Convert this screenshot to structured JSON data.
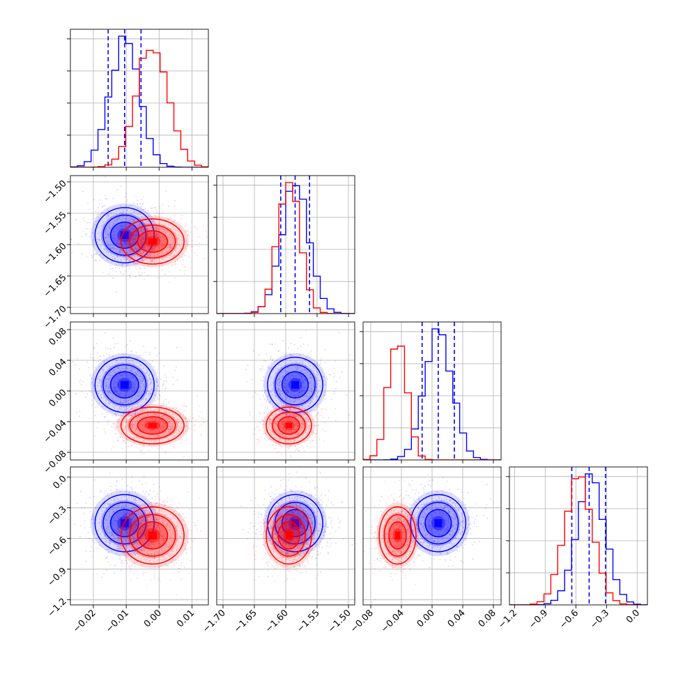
{
  "chart_data": {
    "type": "corner",
    "grid": true,
    "parameters": [
      {
        "range": [
          -0.027,
          0.015
        ],
        "ticks": [
          -0.02,
          -0.01,
          0.0,
          0.01
        ],
        "tick_labels": [
          "−0.02",
          "−0.01",
          "0.00",
          "0.01"
        ]
      },
      {
        "range": [
          -1.71,
          -1.49
        ],
        "ticks": [
          -1.7,
          -1.65,
          -1.6,
          -1.55,
          -1.5
        ],
        "tick_labels": [
          "−1.70",
          "−1.65",
          "−1.60",
          "−1.55",
          "−1.50"
        ]
      },
      {
        "range": [
          -0.09,
          0.09
        ],
        "ticks": [
          -0.08,
          -0.04,
          0.0,
          0.04,
          0.08
        ],
        "tick_labels": [
          "−0.08",
          "−0.04",
          "0.00",
          "0.04",
          "0.08"
        ]
      },
      {
        "range": [
          -1.25,
          0.1
        ],
        "ticks": [
          -1.2,
          -0.9,
          -0.6,
          -0.3,
          0.0
        ],
        "tick_labels": [
          "−1.2",
          "−0.9",
          "−0.6",
          "−0.3",
          "0.0"
        ]
      }
    ],
    "series": [
      {
        "color": "#0000ff",
        "mean": [
          -0.0105,
          -1.585,
          0.008,
          -0.45
        ],
        "std": [
          0.0045,
          0.022,
          0.018,
          0.14
        ],
        "quantiles": [
          [
            -0.0155,
            -0.0105,
            -0.0055
          ],
          [
            -1.608,
            -1.585,
            -1.562
          ],
          [
            -0.013,
            0.008,
            0.029
          ],
          [
            -0.64,
            -0.47,
            -0.31
          ]
        ]
      },
      {
        "color": "#ff0000",
        "mean": [
          -0.002,
          -1.595,
          -0.045,
          -0.57
        ],
        "std": [
          0.0048,
          0.018,
          0.012,
          0.14
        ],
        "quantiles": []
      }
    ]
  }
}
